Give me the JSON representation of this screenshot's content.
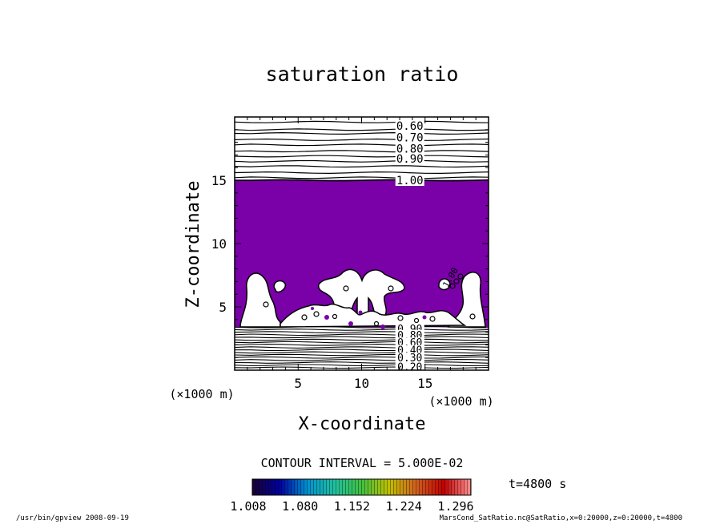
{
  "chart_data": {
    "type": "contour",
    "title": "saturation ratio",
    "xlabel": "X-coordinate",
    "ylabel": "Z-coordinate",
    "x_unit": "(×1000 m)",
    "z_unit": "(×1000 m)",
    "xlim": [
      0,
      20
    ],
    "ylim": [
      0,
      20
    ],
    "x_ticks": [
      5,
      10,
      15
    ],
    "z_ticks": [
      5,
      10,
      15
    ],
    "contour_interval_text": "CONTOUR INTERVAL = 5.000E-02",
    "contour_interval": 0.05,
    "upper_contour_labels": [
      {
        "text": "0.60",
        "z": 19.3
      },
      {
        "text": "0.70",
        "z": 18.4
      },
      {
        "text": "0.80",
        "z": 17.5
      },
      {
        "text": "0.90",
        "z": 16.7
      },
      {
        "text": "1.00",
        "z": 15.0
      }
    ],
    "upper_line_levels_z": [
      19.6,
      19.0,
      18.7,
      18.2,
      17.8,
      17.3,
      16.9,
      16.5,
      16.1,
      15.6,
      15.2
    ],
    "saturated_region": {
      "z_bottom": 3.4,
      "z_top": 15.0,
      "color": "#7a00a8"
    },
    "lower_line_levels_z": [
      3.4,
      3.2,
      3.0,
      2.8,
      2.6,
      2.4,
      2.2,
      2.0,
      1.8,
      1.6,
      1.4,
      1.2,
      1.0,
      0.8,
      0.6,
      0.4,
      0.2
    ],
    "lower_contour_labels": [
      {
        "text": "0.90",
        "z": 3.3
      },
      {
        "text": "0.80",
        "z": 2.8
      },
      {
        "text": "0.60",
        "z": 2.2
      },
      {
        "text": "0.40",
        "z": 1.6
      },
      {
        "text": "0.30",
        "z": 1.0
      },
      {
        "text": "0.20",
        "z": 0.3
      }
    ],
    "side_label": {
      "text": "1.00"
    },
    "colorbar": {
      "tick_labels": [
        "1.008",
        "1.080",
        "1.152",
        "1.224",
        "1.296"
      ],
      "stops": [
        "#1a0030",
        "#0000a0",
        "#0090d0",
        "#20c0a0",
        "#40c040",
        "#c0c000",
        "#d06020",
        "#c00000",
        "#ff9090"
      ]
    },
    "time_label": "t=4800 s"
  },
  "footer": {
    "left": "/usr/bin/gpview  2008-09-19",
    "right": "MarsCond_SatRatio.nc@SatRatio,x=0:20000,z=0:20000,t=4800"
  }
}
